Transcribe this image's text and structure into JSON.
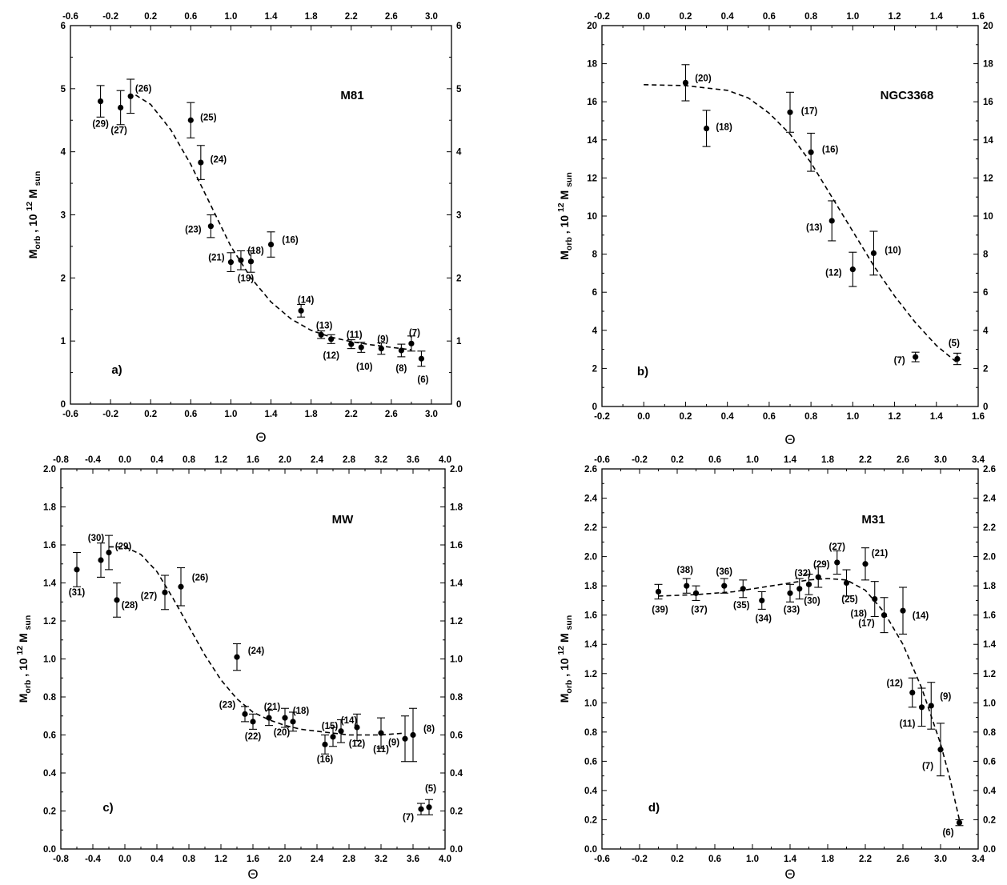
{
  "chart_data": [
    {
      "type": "scatter",
      "name": "M81",
      "letter": "a)",
      "xlabel": "Θ",
      "ylabel": "M_orb , 10^12 M_sun",
      "xlim": [
        -0.6,
        3.2
      ],
      "ylim": [
        0,
        6
      ],
      "xticks": [
        -0.6,
        -0.2,
        0.2,
        0.6,
        1.0,
        1.4,
        1.8,
        2.2,
        2.6,
        3.0
      ],
      "yticks": [
        0,
        1,
        2,
        3,
        4,
        5,
        6
      ],
      "tick_labels_x": [
        "-0.6",
        "-0.2",
        "0.2",
        "0.6",
        "1.0",
        "1.4",
        "1.8",
        "2.2",
        "2.6",
        "3.0"
      ],
      "tick_labels_y": [
        "0",
        "1",
        "2",
        "3",
        "4",
        "5",
        "6"
      ],
      "points": [
        {
          "label": "(29)",
          "x": -0.3,
          "y": 4.8,
          "err": 0.25
        },
        {
          "label": "(27)",
          "x": -0.1,
          "y": 4.7,
          "err": 0.27
        },
        {
          "label": "(26)",
          "x": 0.0,
          "y": 4.88,
          "err": 0.27
        },
        {
          "label": "(25)",
          "x": 0.6,
          "y": 4.5,
          "err": 0.28
        },
        {
          "label": "(24)",
          "x": 0.7,
          "y": 3.83,
          "err": 0.27
        },
        {
          "label": "(23)",
          "x": 0.8,
          "y": 2.82,
          "err": 0.18
        },
        {
          "label": "(21)",
          "x": 1.0,
          "y": 2.25,
          "err": 0.15
        },
        {
          "label": "(19)",
          "x": 1.1,
          "y": 2.28,
          "err": 0.15
        },
        {
          "label": "(18)",
          "x": 1.2,
          "y": 2.26,
          "err": 0.17
        },
        {
          "label": "(16)",
          "x": 1.4,
          "y": 2.53,
          "err": 0.2
        },
        {
          "label": "(14)",
          "x": 1.7,
          "y": 1.48,
          "err": 0.1
        },
        {
          "label": "(13)",
          "x": 1.9,
          "y": 1.1,
          "err": 0.06
        },
        {
          "label": "(12)",
          "x": 2.0,
          "y": 1.03,
          "err": 0.07
        },
        {
          "label": "(11)",
          "x": 2.2,
          "y": 0.95,
          "err": 0.07
        },
        {
          "label": "(10)",
          "x": 2.3,
          "y": 0.9,
          "err": 0.08
        },
        {
          "label": "(9)",
          "x": 2.5,
          "y": 0.88,
          "err": 0.09
        },
        {
          "label": "(8)",
          "x": 2.7,
          "y": 0.85,
          "err": 0.1
        },
        {
          "label": "(7)",
          "x": 2.8,
          "y": 0.96,
          "err": 0.12
        },
        {
          "label": "(6)",
          "x": 2.9,
          "y": 0.72,
          "err": 0.12
        }
      ],
      "curve": [
        [
          0.05,
          4.9
        ],
        [
          0.2,
          4.75
        ],
        [
          0.4,
          4.35
        ],
        [
          0.6,
          3.8
        ],
        [
          0.8,
          3.15
        ],
        [
          1.0,
          2.5
        ],
        [
          1.2,
          2.0
        ],
        [
          1.4,
          1.62
        ],
        [
          1.6,
          1.35
        ],
        [
          1.8,
          1.17
        ],
        [
          2.0,
          1.06
        ],
        [
          2.2,
          0.99
        ],
        [
          2.4,
          0.94
        ],
        [
          2.6,
          0.9
        ],
        [
          2.8,
          0.86
        ]
      ]
    },
    {
      "type": "scatter",
      "name": "NGC3368",
      "letter": "b)",
      "xlabel": "Θ",
      "ylabel": "M_orb , 10^12 M_sun",
      "xlim": [
        -0.2,
        1.6
      ],
      "ylim": [
        0,
        20
      ],
      "xticks": [
        -0.2,
        0.0,
        0.2,
        0.4,
        0.6,
        0.8,
        1.0,
        1.2,
        1.4,
        1.6
      ],
      "yticks": [
        0,
        2,
        4,
        6,
        8,
        10,
        12,
        14,
        16,
        18,
        20
      ],
      "tick_labels_x": [
        "-0.2",
        "0.0",
        "0.2",
        "0.4",
        "0.6",
        "0.8",
        "1.0",
        "1.2",
        "1.4",
        "1.6"
      ],
      "tick_labels_y": [
        "0",
        "2",
        "4",
        "6",
        "8",
        "10",
        "12",
        "14",
        "16",
        "18",
        "20"
      ],
      "points": [
        {
          "label": "(20)",
          "x": 0.2,
          "y": 17.0,
          "err": 0.95
        },
        {
          "label": "(18)",
          "x": 0.3,
          "y": 14.6,
          "err": 0.95
        },
        {
          "label": "(17)",
          "x": 0.7,
          "y": 15.45,
          "err": 1.05
        },
        {
          "label": "(16)",
          "x": 0.8,
          "y": 13.35,
          "err": 1.0
        },
        {
          "label": "(13)",
          "x": 0.9,
          "y": 9.75,
          "err": 1.05
        },
        {
          "label": "(12)",
          "x": 1.0,
          "y": 7.2,
          "err": 0.9
        },
        {
          "label": "(10)",
          "x": 1.1,
          "y": 8.05,
          "err": 1.15
        },
        {
          "label": "(7)",
          "x": 1.3,
          "y": 2.6,
          "err": 0.25
        },
        {
          "label": "(5)",
          "x": 1.5,
          "y": 2.5,
          "err": 0.3
        }
      ],
      "curve": [
        [
          0.0,
          16.9
        ],
        [
          0.2,
          16.85
        ],
        [
          0.4,
          16.6
        ],
        [
          0.5,
          16.2
        ],
        [
          0.6,
          15.4
        ],
        [
          0.7,
          14.3
        ],
        [
          0.8,
          12.8
        ],
        [
          0.9,
          11.0
        ],
        [
          1.0,
          9.2
        ],
        [
          1.1,
          7.4
        ],
        [
          1.2,
          5.8
        ],
        [
          1.3,
          4.4
        ],
        [
          1.4,
          3.2
        ],
        [
          1.5,
          2.3
        ]
      ]
    },
    {
      "type": "scatter",
      "name": "MW",
      "letter": "c)",
      "xlabel": "Θ",
      "ylabel": "M_orb , 10^12 M_sun",
      "xlim": [
        -0.8,
        4.0
      ],
      "ylim": [
        0,
        2.0
      ],
      "xticks": [
        -0.8,
        -0.4,
        0.0,
        0.4,
        0.8,
        1.2,
        1.6,
        2.0,
        2.4,
        2.8,
        3.2,
        3.6,
        4.0
      ],
      "yticks": [
        0.0,
        0.2,
        0.4,
        0.6,
        0.8,
        1.0,
        1.2,
        1.4,
        1.6,
        1.8,
        2.0
      ],
      "tick_labels_x": [
        "-0.8",
        "-0.4",
        "0.0",
        "0.4",
        "0.8",
        "1.2",
        "1.6",
        "2.0",
        "2.4",
        "2.8",
        "3.2",
        "3.6",
        "4.0"
      ],
      "tick_labels_y": [
        "0.0",
        "0.2",
        "0.4",
        "0.6",
        "0.8",
        "1.0",
        "1.2",
        "1.4",
        "1.6",
        "1.8",
        "2.0"
      ],
      "points": [
        {
          "label": "(31)",
          "x": -0.6,
          "y": 1.47,
          "err": 0.09
        },
        {
          "label": "(30)",
          "x": -0.3,
          "y": 1.52,
          "err": 0.09
        },
        {
          "label": "(29)",
          "x": -0.2,
          "y": 1.56,
          "err": 0.09
        },
        {
          "label": "(28)",
          "x": -0.1,
          "y": 1.31,
          "err": 0.09
        },
        {
          "label": "(27)",
          "x": 0.5,
          "y": 1.35,
          "err": 0.09
        },
        {
          "label": "(26)",
          "x": 0.7,
          "y": 1.38,
          "err": 0.1
        },
        {
          "label": "(24)",
          "x": 1.4,
          "y": 1.01,
          "err": 0.07
        },
        {
          "label": "(23)",
          "x": 1.5,
          "y": 0.71,
          "err": 0.04
        },
        {
          "label": "(22)",
          "x": 1.6,
          "y": 0.67,
          "err": 0.04
        },
        {
          "label": "(21)",
          "x": 1.8,
          "y": 0.69,
          "err": 0.04
        },
        {
          "label": "(20)",
          "x": 2.0,
          "y": 0.69,
          "err": 0.05
        },
        {
          "label": "(18)",
          "x": 2.1,
          "y": 0.67,
          "err": 0.05
        },
        {
          "label": "(16)",
          "x": 2.5,
          "y": 0.55,
          "err": 0.05
        },
        {
          "label": "(15)",
          "x": 2.6,
          "y": 0.59,
          "err": 0.05
        },
        {
          "label": "(14)",
          "x": 2.7,
          "y": 0.62,
          "err": 0.06
        },
        {
          "label": "(12)",
          "x": 2.9,
          "y": 0.64,
          "err": 0.07
        },
        {
          "label": "(11)",
          "x": 3.2,
          "y": 0.61,
          "err": 0.08
        },
        {
          "label": "(9)",
          "x": 3.5,
          "y": 0.58,
          "err": 0.12
        },
        {
          "label": "(8)",
          "x": 3.6,
          "y": 0.6,
          "err": 0.14
        },
        {
          "label": "(7)",
          "x": 3.7,
          "y": 0.21,
          "err": 0.03
        },
        {
          "label": "(5)",
          "x": 3.8,
          "y": 0.22,
          "err": 0.04
        }
      ],
      "curve": [
        [
          -0.2,
          1.59
        ],
        [
          0.0,
          1.59
        ],
        [
          0.2,
          1.55
        ],
        [
          0.4,
          1.46
        ],
        [
          0.6,
          1.32
        ],
        [
          0.8,
          1.17
        ],
        [
          1.0,
          1.02
        ],
        [
          1.2,
          0.89
        ],
        [
          1.4,
          0.79
        ],
        [
          1.6,
          0.72
        ],
        [
          1.8,
          0.68
        ],
        [
          2.0,
          0.65
        ],
        [
          2.2,
          0.63
        ],
        [
          2.4,
          0.62
        ],
        [
          2.8,
          0.6
        ],
        [
          3.2,
          0.6
        ],
        [
          3.5,
          0.61
        ]
      ]
    },
    {
      "type": "scatter",
      "name": "M31",
      "letter": "d)",
      "xlabel": "Θ",
      "ylabel": "M_orb , 10^12 M_sun",
      "xlim": [
        -0.6,
        3.4
      ],
      "ylim": [
        0,
        2.6
      ],
      "xticks": [
        -0.6,
        -0.2,
        0.2,
        0.6,
        1.0,
        1.4,
        1.8,
        2.2,
        2.6,
        3.0,
        3.4
      ],
      "yticks": [
        0.0,
        0.2,
        0.4,
        0.6,
        0.8,
        1.0,
        1.2,
        1.4,
        1.6,
        1.8,
        2.0,
        2.2,
        2.4,
        2.6
      ],
      "tick_labels_x": [
        "-0.6",
        "-0.2",
        "0.2",
        "0.6",
        "1.0",
        "1.4",
        "1.8",
        "2.2",
        "2.6",
        "3.0",
        "3.4"
      ],
      "tick_labels_y": [
        "0.0",
        "0.2",
        "0.4",
        "0.6",
        "0.8",
        "1.0",
        "1.2",
        "1.4",
        "1.6",
        "1.8",
        "2.0",
        "2.2",
        "2.4",
        "2.6"
      ],
      "points": [
        {
          "label": "(39)",
          "x": 0.0,
          "y": 1.76,
          "err": 0.05
        },
        {
          "label": "(38)",
          "x": 0.3,
          "y": 1.8,
          "err": 0.05
        },
        {
          "label": "(37)",
          "x": 0.4,
          "y": 1.75,
          "err": 0.05
        },
        {
          "label": "(36)",
          "x": 0.7,
          "y": 1.8,
          "err": 0.05
        },
        {
          "label": "(35)",
          "x": 0.9,
          "y": 1.78,
          "err": 0.06
        },
        {
          "label": "(34)",
          "x": 1.1,
          "y": 1.7,
          "err": 0.06
        },
        {
          "label": "(33)",
          "x": 1.4,
          "y": 1.75,
          "err": 0.06
        },
        {
          "label": "(32)",
          "x": 1.5,
          "y": 1.78,
          "err": 0.07
        },
        {
          "label": "(30)",
          "x": 1.6,
          "y": 1.81,
          "err": 0.07
        },
        {
          "label": "(29)",
          "x": 1.7,
          "y": 1.86,
          "err": 0.07
        },
        {
          "label": "(27)",
          "x": 1.9,
          "y": 1.96,
          "err": 0.08
        },
        {
          "label": "(25)",
          "x": 2.0,
          "y": 1.82,
          "err": 0.09
        },
        {
          "label": "(21)",
          "x": 2.2,
          "y": 1.95,
          "err": 0.11
        },
        {
          "label": "(18)",
          "x": 2.3,
          "y": 1.71,
          "err": 0.12
        },
        {
          "label": "(17)",
          "x": 2.4,
          "y": 1.6,
          "err": 0.12
        },
        {
          "label": "(14)",
          "x": 2.6,
          "y": 1.63,
          "err": 0.16
        },
        {
          "label": "(12)",
          "x": 2.7,
          "y": 1.07,
          "err": 0.1
        },
        {
          "label": "(11)",
          "x": 2.8,
          "y": 0.97,
          "err": 0.13
        },
        {
          "label": "(9)",
          "x": 2.9,
          "y": 0.98,
          "err": 0.16
        },
        {
          "label": "(7)",
          "x": 3.0,
          "y": 0.68,
          "err": 0.18
        },
        {
          "label": "(6)",
          "x": 3.2,
          "y": 0.18,
          "err": 0.02
        }
      ],
      "curve": [
        [
          0.0,
          1.73
        ],
        [
          0.4,
          1.74
        ],
        [
          0.8,
          1.76
        ],
        [
          1.2,
          1.8
        ],
        [
          1.6,
          1.84
        ],
        [
          1.8,
          1.85
        ],
        [
          2.0,
          1.84
        ],
        [
          2.2,
          1.77
        ],
        [
          2.4,
          1.62
        ],
        [
          2.6,
          1.4
        ],
        [
          2.8,
          1.1
        ],
        [
          3.0,
          0.72
        ],
        [
          3.1,
          0.48
        ],
        [
          3.2,
          0.2
        ]
      ]
    }
  ]
}
